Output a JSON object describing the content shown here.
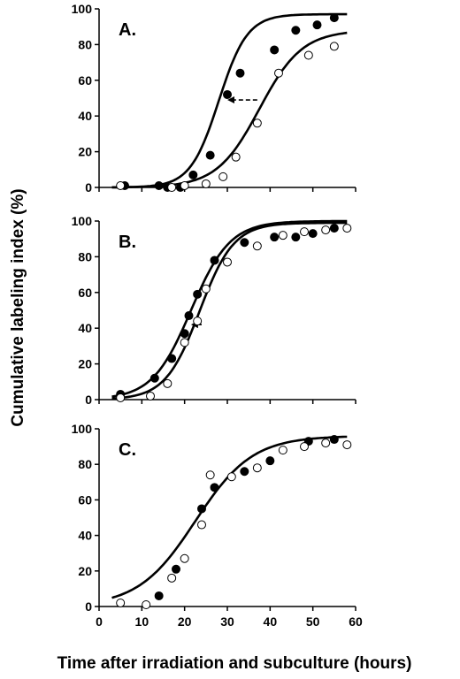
{
  "chart_data": [
    {
      "type": "scatter",
      "panel_label": "A.",
      "xlim": [
        0,
        60
      ],
      "ylim": [
        0,
        100
      ],
      "x_ticks": [],
      "y_ticks": [
        0,
        20,
        40,
        60,
        80,
        100
      ],
      "series": [
        {
          "marker": "filled",
          "x": [
            6,
            14,
            16,
            19,
            22,
            26,
            30,
            33,
            41,
            46,
            51,
            55
          ],
          "y": [
            1,
            1,
            0,
            0,
            7,
            18,
            52,
            64,
            77,
            88,
            91,
            95
          ],
          "fit": {
            "A": 97,
            "x0": 28,
            "k": 0.3
          }
        },
        {
          "marker": "open",
          "x": [
            5,
            17,
            20,
            25,
            29,
            32,
            37,
            42,
            49,
            55
          ],
          "y": [
            1,
            0,
            1,
            2,
            6,
            17,
            36,
            64,
            74,
            79
          ],
          "fit": {
            "A": 88,
            "x0": 37.5,
            "k": 0.2
          }
        }
      ],
      "arrow": {
        "from_x": 37,
        "to_x": 30,
        "y": 49
      }
    },
    {
      "type": "scatter",
      "panel_label": "B.",
      "xlim": [
        0,
        60
      ],
      "ylim": [
        0,
        100
      ],
      "x_ticks": [],
      "y_ticks": [
        0,
        20,
        40,
        60,
        80,
        100
      ],
      "series": [
        {
          "marker": "filled",
          "x": [
            5,
            13,
            17,
            20,
            21,
            23,
            27,
            34,
            41,
            46,
            50,
            55
          ],
          "y": [
            3,
            12,
            23,
            37,
            47,
            59,
            78,
            88,
            91,
            91,
            93,
            96
          ],
          "fit": {
            "A": 100,
            "x0": 21.5,
            "k": 0.22
          }
        },
        {
          "marker": "open",
          "x": [
            5,
            12,
            16,
            20,
            23,
            25,
            30,
            37,
            43,
            48,
            53,
            58
          ],
          "y": [
            1,
            2,
            9,
            32,
            44,
            62,
            77,
            86,
            92,
            94,
            95,
            96
          ],
          "fit": {
            "A": 99,
            "x0": 23.5,
            "k": 0.25
          }
        }
      ],
      "arrow": {
        "from_x": 24,
        "to_x": 21.5,
        "y": 42
      }
    },
    {
      "type": "scatter",
      "panel_label": "C.",
      "xlim": [
        0,
        60
      ],
      "ylim": [
        0,
        100
      ],
      "x_ticks": [
        0,
        10,
        20,
        30,
        40,
        50,
        60
      ],
      "y_ticks": [
        0,
        20,
        40,
        60,
        80,
        100
      ],
      "series": [
        {
          "marker": "filled",
          "x": [
            14,
            18,
            24,
            27,
            34,
            40,
            49,
            55
          ],
          "y": [
            6,
            21,
            55,
            67,
            76,
            82,
            93,
            94
          ],
          "fit": null
        },
        {
          "marker": "open",
          "x": [
            5,
            11,
            17,
            20,
            24,
            26,
            31,
            37,
            43,
            48,
            53,
            58
          ],
          "y": [
            2,
            1,
            16,
            27,
            46,
            74,
            73,
            78,
            88,
            90,
            92,
            91
          ],
          "fit": null
        }
      ],
      "single_fit": {
        "A": 96,
        "x0": 22.5,
        "k": 0.15
      }
    }
  ],
  "labels": {
    "ylabel": "Cumulative labeling index (%)",
    "xlabel": "Time after irradiation and subculture (hours)"
  }
}
